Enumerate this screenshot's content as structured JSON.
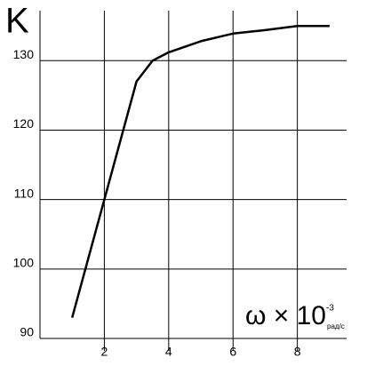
{
  "chart_data": {
    "type": "line",
    "y_label": "K",
    "x_label": {
      "base": "ω × 10",
      "exponent": "-3",
      "unit": "рад/с"
    },
    "x": [
      1,
      2,
      3,
      3.5,
      4,
      5,
      6,
      7,
      8,
      9
    ],
    "series": [
      {
        "color": "#000000",
        "values": [
          93,
          110,
          127,
          130,
          131.2,
          132.8,
          133.9,
          134.4,
          135,
          135
        ]
      }
    ],
    "xlim": [
      0,
      9.75
    ],
    "ylim": [
      90,
      137.2
    ],
    "xticks": [
      2,
      4,
      6,
      8
    ],
    "yticks": [
      90,
      100,
      110,
      120,
      130
    ],
    "grid": true
  }
}
